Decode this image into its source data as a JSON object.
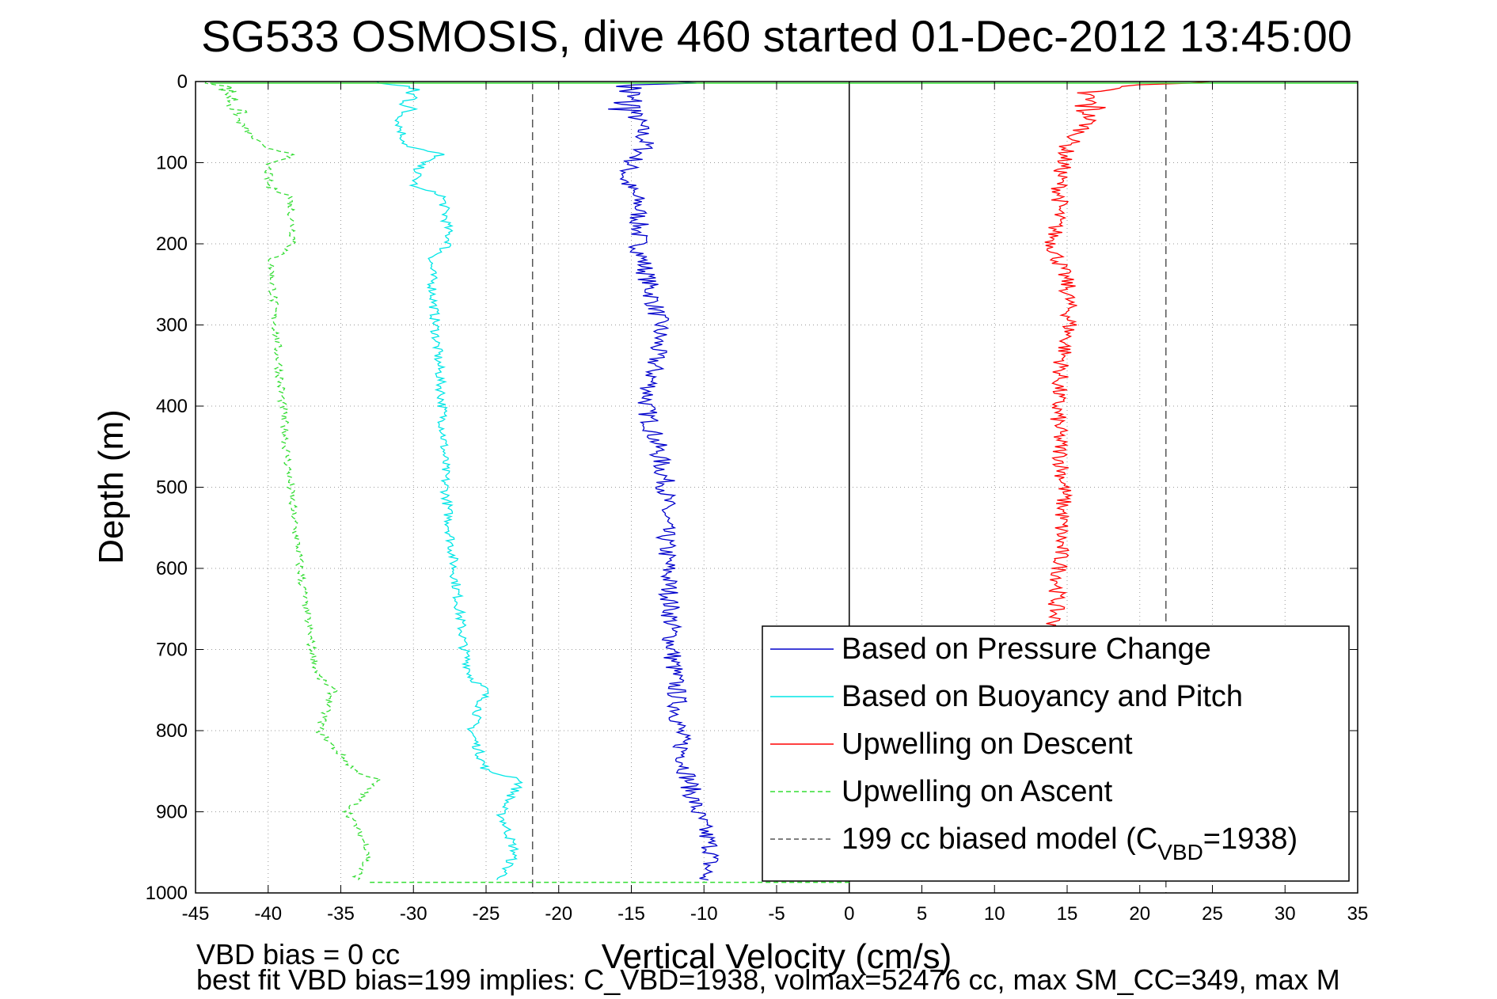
{
  "chart_data": {
    "type": "line",
    "title": "SG533 OSMOSIS, dive 460 started 01-Dec-2012 13:45:00",
    "xlabel": "Vertical Velocity (cm/s)",
    "ylabel": "Depth (m)",
    "xlim": [
      -45,
      35
    ],
    "ylim": [
      0,
      1000
    ],
    "y_reversed": true,
    "grid": true,
    "legend_position": "bottom-right",
    "x_ticks": [
      -45,
      -40,
      -35,
      -30,
      -25,
      -20,
      -15,
      -10,
      -5,
      0,
      5,
      10,
      15,
      20,
      25,
      30,
      35
    ],
    "y_ticks": [
      0,
      100,
      200,
      300,
      400,
      500,
      600,
      700,
      800,
      900,
      1000
    ],
    "vertical_lines": [
      {
        "x": 0,
        "style": "solid"
      },
      {
        "x": -21.8,
        "style": "dashed"
      },
      {
        "x": 21.8,
        "style": "dashed"
      }
    ],
    "series": [
      {
        "name": "Based on Pressure Change",
        "color": "#0000cc",
        "dash": "solid",
        "depth": [
          0,
          5,
          20,
          50,
          80,
          100,
          120,
          150,
          200,
          250,
          300,
          350,
          400,
          450,
          500,
          550,
          600,
          650,
          700,
          750,
          800,
          850,
          900,
          950,
          985
        ],
        "velocity": [
          -10,
          -15,
          -15.5,
          -14.5,
          -14,
          -15,
          -15.5,
          -14.5,
          -14.5,
          -13.8,
          -13,
          -13.4,
          -14,
          -13.2,
          -12.6,
          -12.7,
          -12.5,
          -12.3,
          -12.2,
          -11.9,
          -11.7,
          -11.2,
          -10.5,
          -9.4,
          -10
        ]
      },
      {
        "name": "Based on Buoyancy and Pitch",
        "color": "#00e6e6",
        "dash": "solid",
        "depth": [
          0,
          5,
          20,
          50,
          80,
          90,
          100,
          130,
          140,
          200,
          220,
          300,
          400,
          500,
          600,
          700,
          735,
          750,
          800,
          850,
          860,
          900,
          950,
          985
        ],
        "velocity": [
          -33,
          -30.5,
          -30,
          -31,
          -30.5,
          -28,
          -29.5,
          -30,
          -28,
          -27.5,
          -28.8,
          -28.5,
          -28,
          -27.8,
          -27.2,
          -26.5,
          -26,
          -25,
          -26,
          -25,
          -22.5,
          -24,
          -23,
          -24
        ]
      },
      {
        "name": "Upwelling on Descent",
        "color": "#ff0000",
        "dash": "solid",
        "depth": [
          0,
          5,
          15,
          30,
          50,
          80,
          120,
          150,
          200,
          250,
          300,
          350,
          400,
          450,
          500,
          550,
          600,
          650,
          700
        ],
        "velocity": [
          25,
          18,
          16,
          16.5,
          16.5,
          15,
          14.5,
          14.5,
          14,
          15,
          15.2,
          14.6,
          14.3,
          14.5,
          14.8,
          14.6,
          14.5,
          14.2,
          14
        ]
      },
      {
        "name": "Upwelling on Ascent",
        "color": "#33dd33",
        "dash": "dashed",
        "depth": [
          0,
          5,
          20,
          50,
          80,
          90,
          100,
          130,
          140,
          200,
          220,
          300,
          400,
          500,
          600,
          700,
          735,
          750,
          800,
          850,
          860,
          900,
          950,
          985
        ],
        "velocity": [
          -44,
          -43,
          -42.5,
          -42,
          -40.5,
          -38,
          -40,
          -40,
          -38.5,
          -38.2,
          -39.8,
          -39.5,
          -39,
          -38.5,
          -37.8,
          -37,
          -36.5,
          -35.5,
          -36.5,
          -34,
          -32.5,
          -34.5,
          -33,
          -34
        ]
      },
      {
        "name": "199 cc biased model (C_VBD=1938)",
        "legend_parts": [
          "199 cc biased model (C",
          "VBD",
          "=1938)"
        ],
        "color": "#555555",
        "dash": "dashed",
        "depth": [],
        "velocity": []
      }
    ]
  },
  "footer": {
    "line1": "VBD bias = 0 cc",
    "line2": "best fit VBD bias=199 implies: C_VBD=1938, volmax=52476 cc, max SM_CC=349, max M"
  }
}
